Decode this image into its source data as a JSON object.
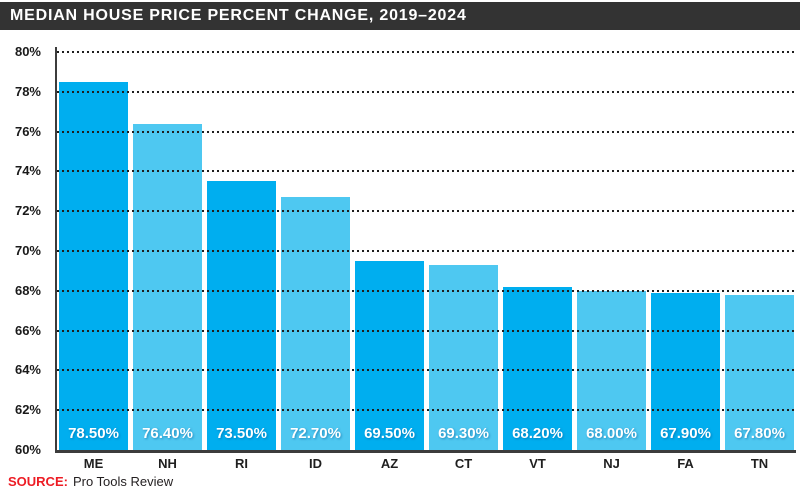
{
  "title": "MEDIAN HOUSE PRICE PERCENT CHANGE, 2019–2024",
  "source": {
    "label": "SOURCE:",
    "text": "Pro Tools Review"
  },
  "colors": {
    "title_bar": "#333333",
    "bar_dark": "#00AEEF",
    "bar_light": "#4EC8F1",
    "axis": "#3c3c3c",
    "gridline": "#1d1d1d",
    "source_label": "#ED1C24",
    "text": "#231F20"
  },
  "chart_data": {
    "type": "bar",
    "title": "MEDIAN HOUSE PRICE PERCENT CHANGE, 2019–2024",
    "categories": [
      "ME",
      "NH",
      "RI",
      "ID",
      "AZ",
      "CT",
      "VT",
      "NJ",
      "FA",
      "TN"
    ],
    "values": [
      78.5,
      76.4,
      73.5,
      72.7,
      69.5,
      69.3,
      68.2,
      68.0,
      67.9,
      67.8
    ],
    "bar_labels": [
      "78.50%",
      "76.40%",
      "73.50%",
      "72.70%",
      "69.50%",
      "69.30%",
      "68.20%",
      "68.00%",
      "67.90%",
      "67.80%"
    ],
    "xlabel": "",
    "ylabel": "",
    "ylim": [
      60,
      80
    ],
    "ytick_step": 2,
    "ytick_labels": [
      "60%",
      "62%",
      "64%",
      "66%",
      "68%",
      "70%",
      "72%",
      "74%",
      "76%",
      "78%",
      "80%"
    ],
    "grid": "horizontal-dotted",
    "legend": "none",
    "bar_color_pattern": "alternating dark/light cyan"
  }
}
